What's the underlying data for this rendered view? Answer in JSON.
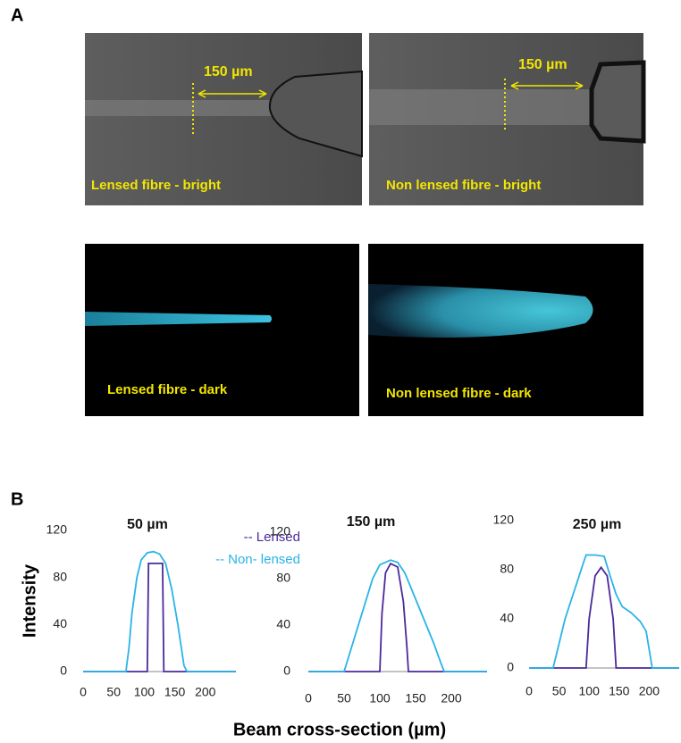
{
  "panel_labels": [
    "A",
    "B"
  ],
  "images": [
    {
      "label": "Lensed fibre - bright",
      "scale_label": "150 µm"
    },
    {
      "label": "Non lensed fibre - bright",
      "scale_label": "150 µm"
    },
    {
      "label": "Lensed fibre - dark"
    },
    {
      "label": "Non lensed fibre - dark"
    }
  ],
  "x_label": "Beam cross-section (µm)",
  "chart_data": [
    {
      "type": "line",
      "title": "50 µm",
      "ylabel": "Intensity",
      "legend": "top-right",
      "grid": false,
      "xlim": [
        0,
        250
      ],
      "xticks": [
        0,
        50,
        100,
        150,
        200
      ],
      "ylim": [
        0,
        120
      ],
      "yticks": [
        0,
        40,
        80,
        120
      ],
      "series": [
        {
          "name": "-- Lensed",
          "color": "#4b2a9a",
          "x": [
            0,
            105,
            107,
            130,
            132,
            250
          ],
          "values": [
            0,
            0,
            92,
            92,
            0,
            0
          ]
        },
        {
          "name": "-- Non- lensed",
          "color": "#2ab4e6",
          "x": [
            0,
            70,
            75,
            80,
            88,
            95,
            105,
            115,
            125,
            135,
            145,
            155,
            165,
            170,
            250
          ],
          "values": [
            0,
            0,
            20,
            50,
            80,
            95,
            101,
            102,
            100,
            92,
            70,
            40,
            5,
            0,
            0
          ]
        }
      ]
    },
    {
      "type": "line",
      "title": "150 µm",
      "grid": false,
      "xlim": [
        0,
        250
      ],
      "xticks": [
        0,
        50,
        100,
        150,
        200
      ],
      "ylim": [
        0,
        120
      ],
      "yticks": [
        0,
        40,
        80,
        120
      ],
      "series": [
        {
          "color": "#4b2a9a",
          "x": [
            0,
            100,
            103,
            108,
            115,
            125,
            133,
            138,
            140,
            250
          ],
          "values": [
            0,
            0,
            50,
            85,
            93,
            90,
            60,
            20,
            0,
            0
          ]
        },
        {
          "color": "#2ab4e6",
          "x": [
            0,
            50,
            60,
            70,
            80,
            90,
            100,
            115,
            125,
            135,
            145,
            155,
            165,
            175,
            185,
            190,
            250
          ],
          "values": [
            0,
            0,
            20,
            40,
            60,
            80,
            92,
            96,
            94,
            85,
            70,
            55,
            40,
            25,
            8,
            0,
            0
          ]
        }
      ]
    },
    {
      "type": "line",
      "title": "250 µm",
      "grid": false,
      "xlim": [
        0,
        250
      ],
      "xticks": [
        0,
        50,
        100,
        150,
        200
      ],
      "ylim": [
        0,
        120
      ],
      "yticks": [
        0,
        40,
        80,
        120
      ],
      "series": [
        {
          "color": "#4b2a9a",
          "x": [
            0,
            95,
            100,
            110,
            120,
            130,
            140,
            145,
            250
          ],
          "values": [
            0,
            0,
            40,
            75,
            82,
            75,
            40,
            0,
            0
          ]
        },
        {
          "color": "#2ab4e6",
          "x": [
            0,
            40,
            50,
            60,
            70,
            80,
            90,
            95,
            110,
            125,
            135,
            145,
            155,
            170,
            185,
            195,
            205,
            250
          ],
          "values": [
            0,
            0,
            20,
            40,
            55,
            70,
            85,
            92,
            92,
            91,
            75,
            60,
            50,
            45,
            38,
            30,
            0,
            0
          ]
        }
      ]
    }
  ]
}
